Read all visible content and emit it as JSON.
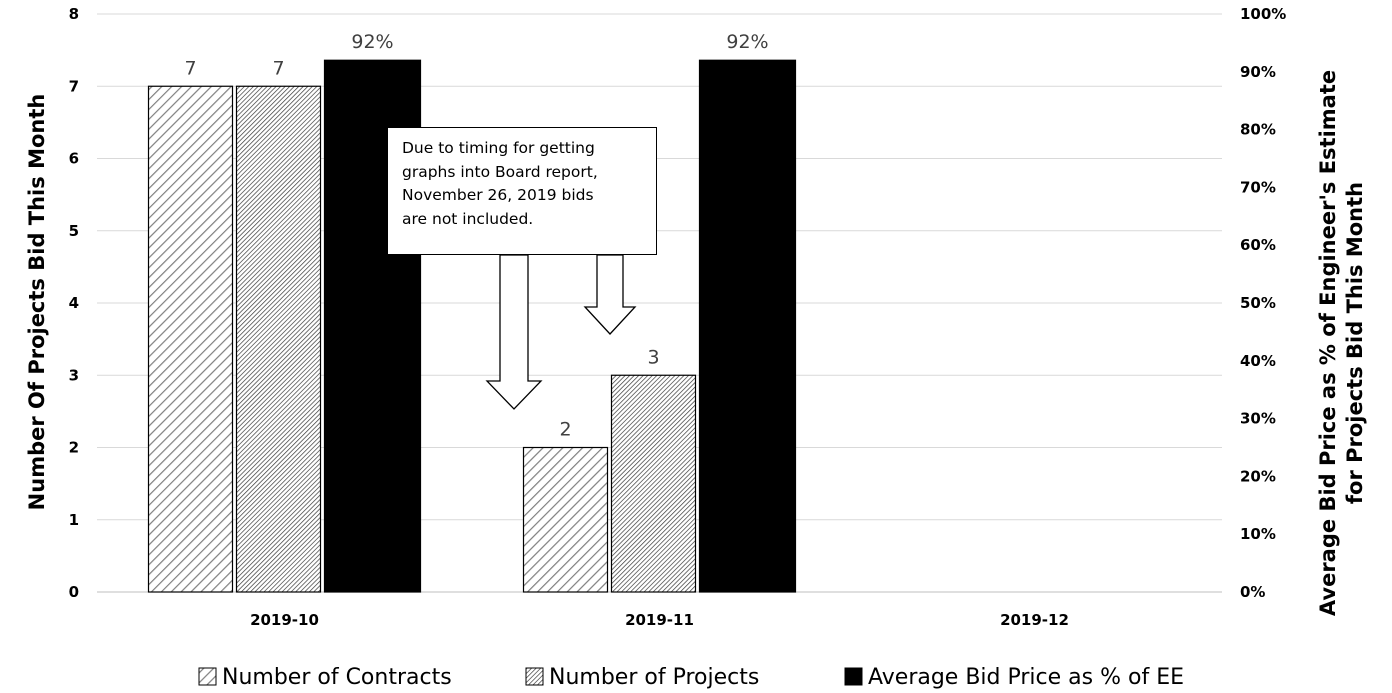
{
  "chart_data": {
    "type": "bar",
    "categories": [
      "2019-10",
      "2019-11",
      "2019-12"
    ],
    "series": [
      {
        "name": "Number of Contracts",
        "axis": "left",
        "pattern": "light-diagonal-hatch",
        "values": [
          7,
          2,
          null
        ],
        "labels": [
          "7",
          "2",
          ""
        ]
      },
      {
        "name": "Number of Projects",
        "axis": "left",
        "pattern": "dense-diagonal-hatch",
        "values": [
          7,
          3,
          null
        ],
        "labels": [
          "7",
          "3",
          ""
        ]
      },
      {
        "name": "Average Bid Price as % of EE",
        "axis": "right",
        "color": "#000000",
        "values": [
          0.92,
          0.92,
          null
        ],
        "labels": [
          "92%",
          "92%",
          ""
        ]
      }
    ],
    "ylabel": "Number Of Projects Bid This Month",
    "y2label": [
      "Average Bid Price as % of Engineer's Estimate",
      "for Projects Bid This Month"
    ],
    "ylim": [
      0,
      8
    ],
    "y2lim": [
      0,
      1
    ],
    "yticks": [
      "0",
      "1",
      "2",
      "3",
      "4",
      "5",
      "6",
      "7",
      "8"
    ],
    "y2ticks": [
      "0%",
      "10%",
      "20%",
      "30%",
      "40%",
      "50%",
      "60%",
      "70%",
      "80%",
      "90%",
      "100%"
    ],
    "grid": true,
    "legend_position": "bottom",
    "annotation": {
      "lines": [
        "Due to timing for getting",
        "graphs into Board report,",
        "November 26, 2019 bids",
        "are not included."
      ],
      "arrows_point_to": [
        "2019-11 Number of Contracts",
        "2019-11 Number of Projects"
      ]
    }
  },
  "colors": {
    "gridline": "#d9d9d9",
    "bar_outline": "#000000",
    "data_label": "#404040"
  }
}
